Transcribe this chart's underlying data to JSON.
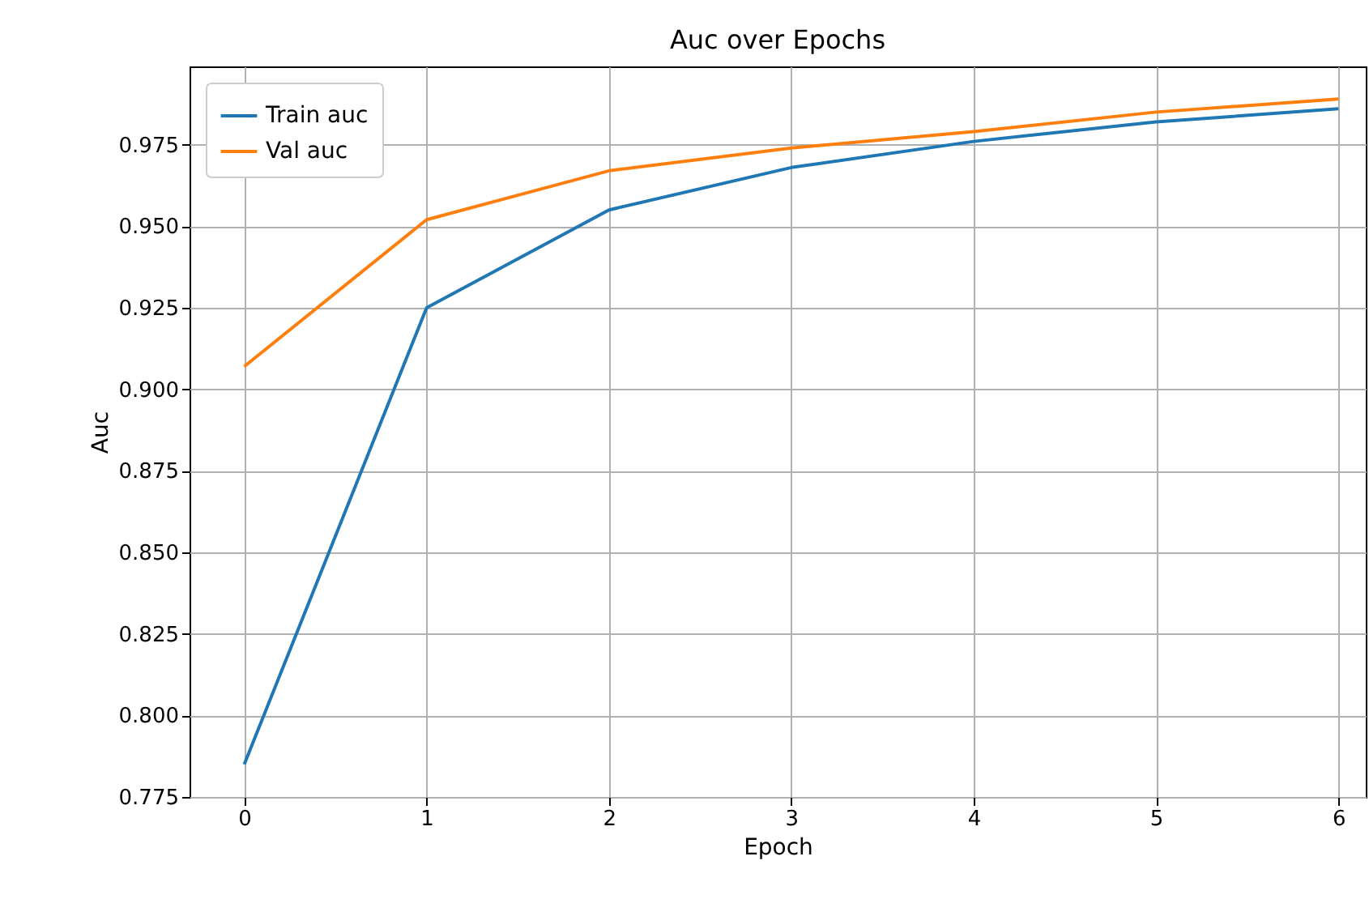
{
  "chart_data": {
    "type": "line",
    "title": "Auc over Epochs",
    "xlabel": "Epoch",
    "ylabel": "Auc",
    "x": [
      0,
      1,
      2,
      3,
      4,
      5,
      6
    ],
    "series": [
      {
        "name": "Train auc",
        "color": "#1f77b4",
        "values": [
          0.785,
          0.925,
          0.955,
          0.968,
          0.976,
          0.982,
          0.986
        ]
      },
      {
        "name": "Val auc",
        "color": "#ff7f0e",
        "values": [
          0.907,
          0.952,
          0.967,
          0.974,
          0.979,
          0.985,
          0.989
        ]
      }
    ],
    "xlim": [
      -0.3,
      6.15
    ],
    "xticks": [
      0,
      1,
      2,
      3,
      4,
      5,
      6
    ],
    "ylim": [
      0.775,
      0.999
    ],
    "yticks": [
      {
        "value": 0.775,
        "label": "0.775"
      },
      {
        "value": 0.8,
        "label": "0.800"
      },
      {
        "value": 0.825,
        "label": "0.825"
      },
      {
        "value": 0.85,
        "label": "0.850"
      },
      {
        "value": 0.875,
        "label": "0.875"
      },
      {
        "value": 0.9,
        "label": "0.900"
      },
      {
        "value": 0.925,
        "label": "0.925"
      },
      {
        "value": 0.95,
        "label": "0.950"
      },
      {
        "value": 0.975,
        "label": "0.975"
      }
    ],
    "grid": true,
    "legend": "top left"
  }
}
